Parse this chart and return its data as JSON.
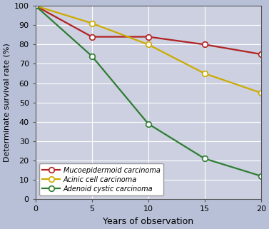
{
  "title": "",
  "xlabel": "Years of observation",
  "ylabel": "Determinate survival rate (%)",
  "xlim": [
    0,
    20
  ],
  "ylim": [
    0,
    100
  ],
  "xticks": [
    0,
    5,
    10,
    15,
    20
  ],
  "yticks": [
    0,
    10,
    20,
    30,
    40,
    50,
    60,
    70,
    80,
    90,
    100
  ],
  "series": [
    {
      "label": "Mucoepidermoid carcinoma",
      "x": [
        0,
        5,
        10,
        15,
        20
      ],
      "y": [
        100,
        84,
        84,
        80,
        75
      ],
      "color": "#b22222",
      "marker": "o",
      "marker_facecolor": "white"
    },
    {
      "label": "Acinic cell carcinoma",
      "x": [
        0,
        5,
        10,
        15,
        20
      ],
      "y": [
        100,
        91,
        80,
        65,
        55
      ],
      "color": "#ccaa00",
      "marker": "o",
      "marker_facecolor": "white"
    },
    {
      "label": "Adenoid cystic carcinoma",
      "x": [
        0,
        5,
        10,
        15,
        20
      ],
      "y": [
        100,
        74,
        39,
        21,
        12
      ],
      "color": "#2e7d32",
      "marker": "o",
      "marker_facecolor": "white"
    }
  ],
  "background_color": "#b8c0d8",
  "plot_background_color": "#ccd0e0",
  "legend_loc": "lower left",
  "grid_color": "white",
  "line_width": 1.6,
  "marker_size": 5.5,
  "marker_edge_width": 1.2,
  "xlabel_fontsize": 9,
  "ylabel_fontsize": 8,
  "tick_fontsize": 8,
  "legend_fontsize": 7
}
